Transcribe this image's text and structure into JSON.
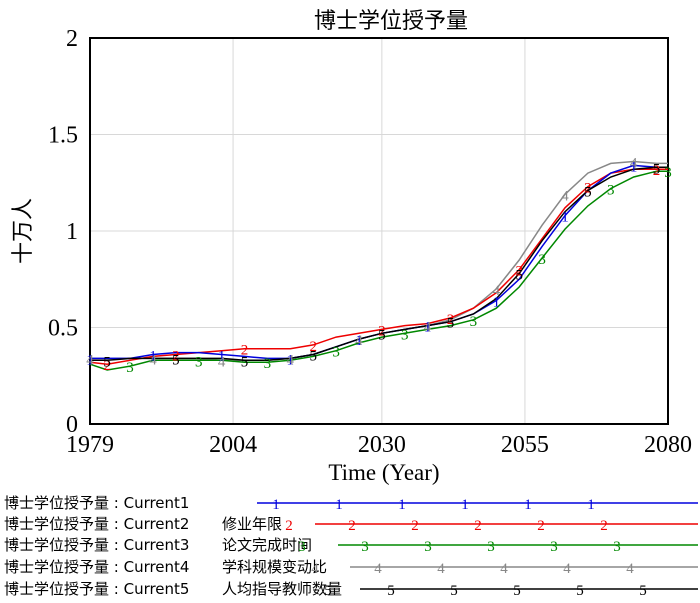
{
  "chart_data": {
    "type": "line",
    "title": "博士学位授予量",
    "xlabel": "Time (Year)",
    "ylabel": "十万人",
    "xlim": [
      1979,
      2080
    ],
    "ylim": [
      0,
      2
    ],
    "xticks": [
      {
        "value": 1979,
        "label": "1979"
      },
      {
        "value": 2004,
        "label": "2004"
      },
      {
        "value": 2030,
        "label": "2030"
      },
      {
        "value": 2055,
        "label": "2055"
      },
      {
        "value": 2080,
        "label": "2080"
      }
    ],
    "yticks": [
      {
        "value": 0,
        "label": "0"
      },
      {
        "value": 0.5,
        "label": "0.5"
      },
      {
        "value": 1,
        "label": "1"
      },
      {
        "value": 1.5,
        "label": "1.5"
      },
      {
        "value": 2,
        "label": "2"
      }
    ],
    "series": [
      {
        "name": "博士学位授予量 : Current1",
        "marker": "1",
        "color": "#0000dd",
        "x": [
          1979,
          1982,
          1986,
          1990,
          1994,
          1998,
          2002,
          2006,
          2010,
          2014,
          2018,
          2022,
          2026,
          2030,
          2034,
          2038,
          2042,
          2046,
          2050,
          2054,
          2058,
          2062,
          2066,
          2070,
          2074,
          2078,
          2080
        ],
        "y": [
          0.34,
          0.34,
          0.34,
          0.36,
          0.37,
          0.37,
          0.36,
          0.35,
          0.34,
          0.34,
          0.36,
          0.4,
          0.44,
          0.47,
          0.49,
          0.51,
          0.53,
          0.57,
          0.64,
          0.75,
          0.92,
          1.08,
          1.21,
          1.3,
          1.34,
          1.33,
          1.33
        ]
      },
      {
        "name": "博士学位授予量 : Current2",
        "label2": "修业年限",
        "marker": "2",
        "color": "#ee0000",
        "x": [
          1979,
          1982,
          1986,
          1990,
          1994,
          1998,
          2002,
          2006,
          2010,
          2014,
          2018,
          2022,
          2026,
          2030,
          2034,
          2038,
          2042,
          2046,
          2050,
          2054,
          2058,
          2062,
          2066,
          2070,
          2074,
          2078,
          2080
        ],
        "y": [
          0.32,
          0.31,
          0.33,
          0.35,
          0.36,
          0.37,
          0.38,
          0.39,
          0.39,
          0.39,
          0.41,
          0.45,
          0.47,
          0.49,
          0.51,
          0.52,
          0.55,
          0.6,
          0.68,
          0.8,
          0.96,
          1.12,
          1.23,
          1.3,
          1.32,
          1.32,
          1.32
        ]
      },
      {
        "name": "博士学位授予量 : Current3",
        "label2": "论文完成时间",
        "marker": "3",
        "color": "#008800",
        "x": [
          1979,
          1982,
          1986,
          1990,
          1994,
          1998,
          2002,
          2006,
          2010,
          2014,
          2018,
          2022,
          2026,
          2030,
          2034,
          2038,
          2042,
          2046,
          2050,
          2054,
          2058,
          2062,
          2066,
          2070,
          2074,
          2078,
          2080
        ],
        "y": [
          0.31,
          0.28,
          0.3,
          0.33,
          0.33,
          0.33,
          0.33,
          0.32,
          0.32,
          0.33,
          0.35,
          0.38,
          0.42,
          0.45,
          0.47,
          0.49,
          0.51,
          0.54,
          0.6,
          0.71,
          0.86,
          1.01,
          1.13,
          1.22,
          1.28,
          1.31,
          1.31
        ]
      },
      {
        "name": "博士学位授予量 : Current4",
        "label2": "学科规模变动比",
        "marker": "4",
        "color": "#888888",
        "x": [
          1979,
          1982,
          1986,
          1990,
          1994,
          1998,
          2002,
          2006,
          2010,
          2014,
          2018,
          2022,
          2026,
          2030,
          2034,
          2038,
          2042,
          2046,
          2050,
          2054,
          2058,
          2062,
          2066,
          2070,
          2074,
          2078,
          2080
        ],
        "y": [
          0.34,
          0.34,
          0.34,
          0.34,
          0.34,
          0.34,
          0.33,
          0.33,
          0.33,
          0.34,
          0.36,
          0.4,
          0.44,
          0.47,
          0.49,
          0.51,
          0.54,
          0.6,
          0.7,
          0.85,
          1.03,
          1.19,
          1.3,
          1.35,
          1.36,
          1.35,
          1.35
        ]
      },
      {
        "name": "博士学位授予量 : Current5",
        "label2": "人均指导教师数量",
        "marker": "5",
        "color": "#000000",
        "x": [
          1979,
          1982,
          1986,
          1990,
          1994,
          1998,
          2002,
          2006,
          2010,
          2014,
          2018,
          2022,
          2026,
          2030,
          2034,
          2038,
          2042,
          2046,
          2050,
          2054,
          2058,
          2062,
          2066,
          2070,
          2074,
          2078,
          2080
        ],
        "y": [
          0.33,
          0.33,
          0.34,
          0.34,
          0.34,
          0.34,
          0.34,
          0.33,
          0.33,
          0.34,
          0.36,
          0.4,
          0.44,
          0.47,
          0.49,
          0.51,
          0.53,
          0.57,
          0.65,
          0.78,
          0.95,
          1.1,
          1.21,
          1.28,
          1.32,
          1.33,
          1.33
        ]
      }
    ],
    "legend_position": "bottom",
    "grid": true
  }
}
